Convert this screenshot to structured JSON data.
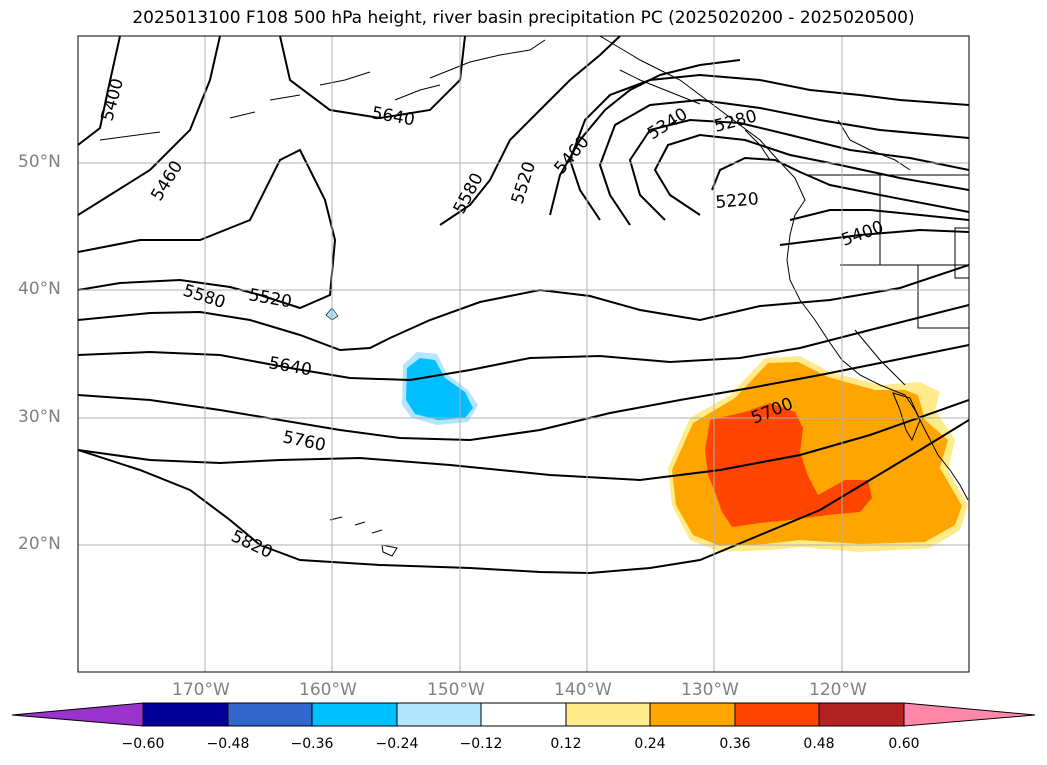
{
  "title": "2025013100 F108 500 hPa height, river basin precipitation PC (2025020200 - 2025020500)",
  "lat_labels": [
    "50°N",
    "40°N",
    "30°N",
    "20°N"
  ],
  "lon_labels": [
    "170°W",
    "160°W",
    "150°W",
    "140°W",
    "130°W",
    "120°W"
  ],
  "contour_labels": [
    "5400",
    "5460",
    "5640",
    "5580",
    "5520",
    "5460",
    "5340",
    "5280",
    "5220",
    "5400",
    "5580",
    "5520",
    "5640",
    "5700",
    "5760",
    "5820"
  ],
  "colorbar": {
    "ticks": [
      "−0.60",
      "−0.48",
      "−0.36",
      "−0.24",
      "−0.12",
      "0.12",
      "0.24",
      "0.36",
      "0.48",
      "0.60"
    ],
    "colors": [
      "#9933cc",
      "#000099",
      "#3366cc",
      "#00bfff",
      "#b3e5fc",
      "#ffffff",
      "#ffeb8a",
      "#ffa500",
      "#ff4500",
      "#b22222",
      "#ff88aa"
    ]
  }
}
